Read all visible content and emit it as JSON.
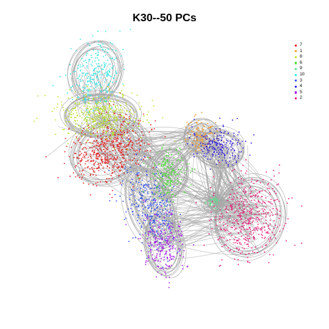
{
  "chart_data": {
    "type": "scatter",
    "title": "K30--50 PCs",
    "xlabel": "",
    "ylabel": "",
    "grid": false,
    "legend_position": "top-right",
    "edge_color": "#a6a6a6",
    "series": [
      {
        "name": "7",
        "color": "#e31a1c",
        "centroid": [
          0.2,
          0.55
        ]
      },
      {
        "name": "1",
        "color": "#f39b2a",
        "centroid": [
          0.62,
          0.62
        ]
      },
      {
        "name": "8",
        "color": "#b7e21f",
        "centroid": [
          0.16,
          0.72
        ]
      },
      {
        "name": "6",
        "color": "#4ddc3a",
        "centroid": [
          0.47,
          0.44
        ]
      },
      {
        "name": "9",
        "color": "#5fe08a",
        "centroid": [
          0.68,
          0.3
        ]
      },
      {
        "name": "10",
        "color": "#2ee5e5",
        "centroid": [
          0.14,
          0.93
        ]
      },
      {
        "name": "3",
        "color": "#2f4ff0",
        "centroid": [
          0.39,
          0.28
        ]
      },
      {
        "name": "4",
        "color": "#2d16e0",
        "centroid": [
          0.7,
          0.57
        ]
      },
      {
        "name": "5",
        "color": "#a316e8",
        "centroid": [
          0.45,
          0.1
        ]
      },
      {
        "name": "2",
        "color": "#ec1878",
        "centroid": [
          0.84,
          0.23
        ]
      }
    ]
  }
}
